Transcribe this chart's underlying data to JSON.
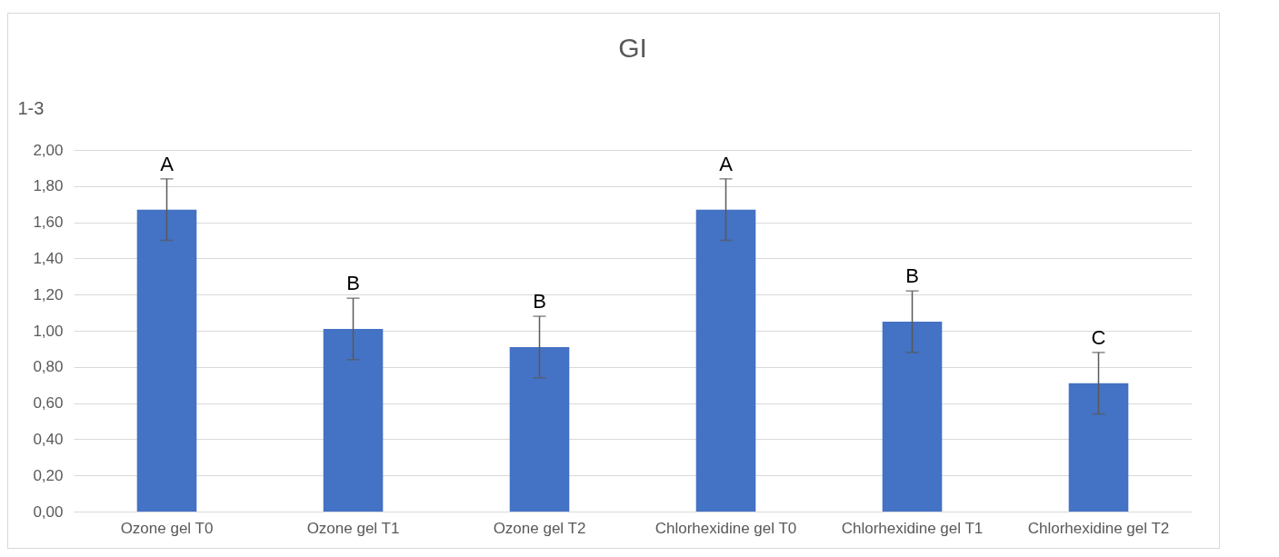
{
  "chart_data": {
    "type": "bar",
    "title": "GI",
    "ylabel": "1-3",
    "categories": [
      "Ozone gel T0",
      "Ozone gel T1",
      "Ozone gel T2",
      "Chlorhexidine gel T0",
      "Chlorhexidine gel T1",
      "Chlorhexidine gel T2"
    ],
    "values": [
      1.67,
      1.01,
      0.91,
      1.67,
      1.05,
      0.71
    ],
    "errors": [
      0.17,
      0.17,
      0.17,
      0.17,
      0.17,
      0.17
    ],
    "color": "#4472c4",
    "ylim": [
      0,
      2
    ],
    "yticks": [
      {
        "value": 0,
        "label": "0,00"
      },
      {
        "value": 0.2,
        "label": "0,20"
      },
      {
        "value": 0.4,
        "label": "0,40"
      },
      {
        "value": 0.6,
        "label": "0,60"
      },
      {
        "value": 0.8,
        "label": "0,80"
      },
      {
        "value": 1,
        "label": "1,00"
      },
      {
        "value": 1.2,
        "label": "1,20"
      },
      {
        "value": 1.4,
        "label": "1,40"
      },
      {
        "value": 1.6,
        "label": "1,60"
      },
      {
        "value": 1.8,
        "label": "1,80"
      },
      {
        "value": 2,
        "label": "2,00"
      }
    ],
    "grid": "y",
    "annotations": [
      {
        "text": "A",
        "x": "Ozone gel T0",
        "y": 1.84
      },
      {
        "text": "B",
        "x": "Ozone gel T1",
        "y": 1.18
      },
      {
        "text": "B",
        "x": "Ozone gel T2",
        "y": 1.08
      },
      {
        "text": "A",
        "x": "Chlorhexidine gel T0",
        "y": 1.84
      },
      {
        "text": "B",
        "x": "Chlorhexidine gel T1",
        "y": 1.22
      },
      {
        "text": "C",
        "x": "Chlorhexidine gel T2",
        "y": 0.88
      }
    ]
  }
}
